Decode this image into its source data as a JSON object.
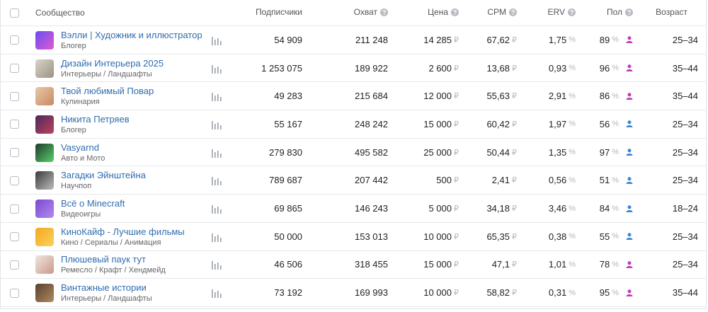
{
  "header": {
    "columns": [
      "Сообщество",
      "Подписчики",
      "Охват",
      "Цена",
      "CPM",
      "ERV",
      "Пол",
      "Возраст"
    ]
  },
  "units": {
    "currency": "₽",
    "percent": "%"
  },
  "rows": [
    {
      "name": "Вэлли | Художник и иллюстратор",
      "category": "Блогер",
      "subscribers": "54 909",
      "reach": "211 248",
      "price": "14 285",
      "cpm": "67,62",
      "erv": "1,75",
      "gender_share": "89",
      "gender_color": "#c23db8",
      "age": "25–34"
    },
    {
      "name": "Дизайн Интерьера 2025",
      "category": "Интерьеры / Ландшафты",
      "subscribers": "1 253 075",
      "reach": "189 922",
      "price": "2 600",
      "cpm": "13,68",
      "erv": "0,93",
      "gender_share": "96",
      "gender_color": "#c23db8",
      "age": "35–44"
    },
    {
      "name": "Твой любимый Повар",
      "category": "Кулинария",
      "subscribers": "49 283",
      "reach": "215 684",
      "price": "12 000",
      "cpm": "55,63",
      "erv": "2,91",
      "gender_share": "86",
      "gender_color": "#c23db8",
      "age": "35–44"
    },
    {
      "name": "Никита Петряев",
      "category": "Блогер",
      "subscribers": "55 167",
      "reach": "248 242",
      "price": "15 000",
      "cpm": "60,42",
      "erv": "1,97",
      "gender_share": "56",
      "gender_color": "#3d87d4",
      "age": "25–34"
    },
    {
      "name": "Vasyarnd",
      "category": "Авто и Мото",
      "subscribers": "279 830",
      "reach": "495 582",
      "price": "25 000",
      "cpm": "50,44",
      "erv": "1,35",
      "gender_share": "97",
      "gender_color": "#3d87d4",
      "age": "25–34"
    },
    {
      "name": "Загадки Эйнштейна",
      "category": "Научпоп",
      "subscribers": "789 687",
      "reach": "207 442",
      "price": "500",
      "cpm": "2,41",
      "erv": "0,56",
      "gender_share": "51",
      "gender_color": "#3d87d4",
      "age": "25–34"
    },
    {
      "name": "Всё о Minecraft",
      "category": "Видеоигры",
      "subscribers": "69 865",
      "reach": "146 243",
      "price": "5 000",
      "cpm": "34,18",
      "erv": "3,46",
      "gender_share": "84",
      "gender_color": "#3d87d4",
      "age": "18–24"
    },
    {
      "name": "КиноКайф - Лучшие фильмы",
      "category": "Кино / Сериалы / Анимация",
      "subscribers": "50 000",
      "reach": "153 013",
      "price": "10 000",
      "cpm": "65,35",
      "erv": "0,38",
      "gender_share": "55",
      "gender_color": "#3d87d4",
      "age": "25–34"
    },
    {
      "name": "Плюшевый паук тут",
      "category": "Ремесло / Крафт / Хендмейд",
      "subscribers": "46 506",
      "reach": "318 455",
      "price": "15 000",
      "cpm": "47,1",
      "erv": "1,01",
      "gender_share": "78",
      "gender_color": "#c23db8",
      "age": "25–34"
    },
    {
      "name": "Винтажные истории",
      "category": "Интерьеры / Ландшафты",
      "subscribers": "73 192",
      "reach": "169 993",
      "price": "10 000",
      "cpm": "58,82",
      "erv": "0,31",
      "gender_share": "95",
      "gender_color": "#c23db8",
      "age": "35–44"
    }
  ]
}
